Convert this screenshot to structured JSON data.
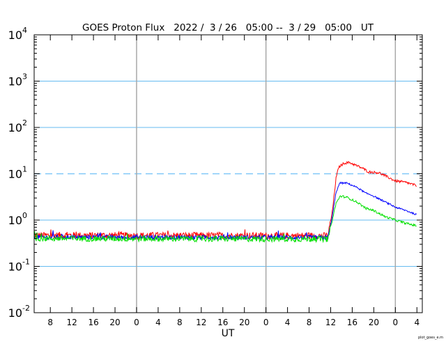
{
  "chart_data": {
    "type": "line",
    "title": "GOES Proton Flux   2022 /  3 / 26   05:00 --  3 / 29   05:00   UT",
    "xlabel": "UT",
    "ylabel": "",
    "footer": "plot_goes_e.m",
    "yscale": "log",
    "ylim": [
      0.01,
      10000
    ],
    "y_ticks": [
      {
        "base": "10",
        "exp": "4",
        "value": 10000
      },
      {
        "base": "10",
        "exp": "3",
        "value": 1000
      },
      {
        "base": "10",
        "exp": "2",
        "value": 100
      },
      {
        "base": "10",
        "exp": "1",
        "value": 10
      },
      {
        "base": "10",
        "exp": "0",
        "value": 1
      },
      {
        "base": "10",
        "exp": "-1",
        "value": 0.1
      },
      {
        "base": "10",
        "exp": "-2",
        "value": 0.01
      }
    ],
    "xlim_hours": [
      0,
      72
    ],
    "x_tick_labels": [
      {
        "label": "8",
        "hour": 3
      },
      {
        "label": "12",
        "hour": 7
      },
      {
        "label": "16",
        "hour": 11
      },
      {
        "label": "20",
        "hour": 15
      },
      {
        "label": "0",
        "hour": 19
      },
      {
        "label": "4",
        "hour": 23
      },
      {
        "label": "8",
        "hour": 27
      },
      {
        "label": "12",
        "hour": 31
      },
      {
        "label": "16",
        "hour": 35
      },
      {
        "label": "20",
        "hour": 39
      },
      {
        "label": "0",
        "hour": 43
      },
      {
        "label": "4",
        "hour": 47
      },
      {
        "label": "8",
        "hour": 51
      },
      {
        "label": "12",
        "hour": 55
      },
      {
        "label": "16",
        "hour": 59
      },
      {
        "label": "20",
        "hour": 63
      },
      {
        "label": "0",
        "hour": 67
      },
      {
        "label": "4",
        "hour": 71
      }
    ],
    "day_boundaries_hours": [
      19,
      43,
      67
    ],
    "grid_solid_values": [
      1000,
      100,
      1,
      0.1
    ],
    "threshold": {
      "value": 10,
      "style": "dashed",
      "color": "#80c8f8"
    },
    "series": [
      {
        "color": "#ff0000",
        "noise": 0.09,
        "points": [
          [
            0,
            0.47
          ],
          [
            54.5,
            0.46
          ],
          [
            55.3,
            1.5
          ],
          [
            56,
            8
          ],
          [
            56.5,
            14
          ],
          [
            57.5,
            17
          ],
          [
            58.5,
            17.5
          ],
          [
            61,
            13
          ],
          [
            62,
            11
          ],
          [
            64,
            10.5
          ],
          [
            66,
            8
          ],
          [
            67,
            7
          ],
          [
            69,
            6.5
          ],
          [
            71,
            5.5
          ]
        ]
      },
      {
        "color": "#0000ff",
        "noise": 0.06,
        "points": [
          [
            0,
            0.43
          ],
          [
            54.5,
            0.42
          ],
          [
            55.3,
            1.2
          ],
          [
            56,
            4
          ],
          [
            56.7,
            6.3
          ],
          [
            58,
            6.3
          ],
          [
            60,
            5
          ],
          [
            61.5,
            3.8
          ],
          [
            62.5,
            3.5
          ],
          [
            65,
            2.5
          ],
          [
            67,
            1.9
          ],
          [
            69,
            1.6
          ],
          [
            71,
            1.3
          ]
        ]
      },
      {
        "color": "#00e000",
        "noise": 0.08,
        "points": [
          [
            0,
            0.4
          ],
          [
            54.5,
            0.39
          ],
          [
            55.3,
            1.0
          ],
          [
            56,
            2.3
          ],
          [
            56.8,
            3.3
          ],
          [
            58,
            3.1
          ],
          [
            60,
            2.4
          ],
          [
            61.5,
            1.8
          ],
          [
            63,
            1.6
          ],
          [
            65,
            1.2
          ],
          [
            67,
            1.0
          ],
          [
            69,
            0.85
          ],
          [
            71,
            0.75
          ]
        ]
      }
    ]
  }
}
